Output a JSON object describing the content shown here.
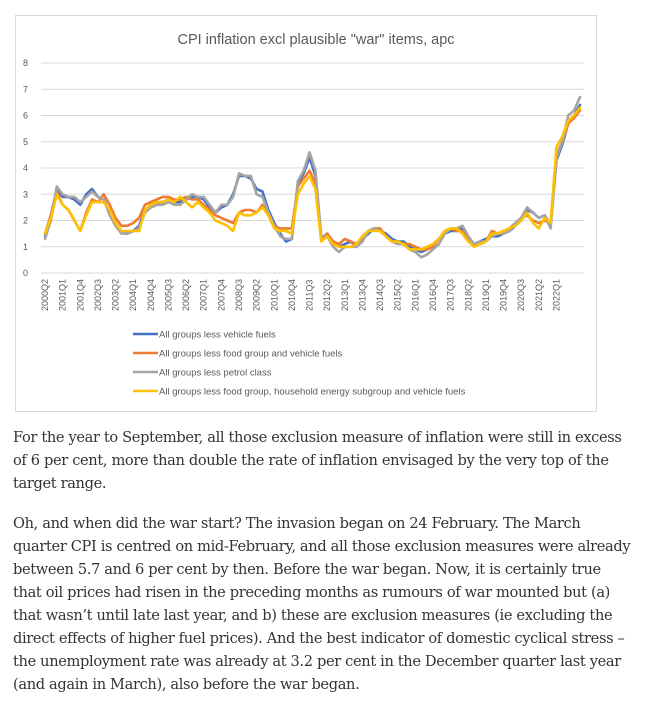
{
  "chart_data": {
    "type": "line",
    "title": "CPI inflation excl plausible \"war\" items, apc",
    "xlabel": "",
    "ylabel": "",
    "ylim": [
      0,
      8
    ],
    "yticks": [
      0,
      1,
      2,
      3,
      4,
      5,
      6,
      7,
      8
    ],
    "grid": true,
    "legend_position": "bottom",
    "x_tick_labels": [
      "2000Q2",
      "2001Q1",
      "2001Q4",
      "2002Q3",
      "2003Q2",
      "2004Q1",
      "2004Q4",
      "2005Q3",
      "2006Q2",
      "2007Q1",
      "2007Q4",
      "2008Q3",
      "2009Q2",
      "2010Q1",
      "2010Q4",
      "2011Q3",
      "2012Q2",
      "2013Q1",
      "2013Q4",
      "2014Q3",
      "2015Q2",
      "2016Q1",
      "2016Q4",
      "2017Q3",
      "2018Q2",
      "2019Q1",
      "2019Q4",
      "2020Q3",
      "2021Q2",
      "2022Q1"
    ],
    "x_start": "2000Q2",
    "x_end": "2022Q3",
    "tick_every": 3,
    "series": [
      {
        "name": "All groups less vehicle fuels",
        "color": "#4472C4",
        "values": [
          1.4,
          2.2,
          3.2,
          2.9,
          2.9,
          2.8,
          2.6,
          3.0,
          3.2,
          2.9,
          2.8,
          2.3,
          1.9,
          1.6,
          1.5,
          1.6,
          1.8,
          2.4,
          2.5,
          2.6,
          2.7,
          2.8,
          2.7,
          2.7,
          2.8,
          2.9,
          2.9,
          2.8,
          2.5,
          2.3,
          2.5,
          2.6,
          3.0,
          3.7,
          3.7,
          3.6,
          3.2,
          3.1,
          2.4,
          1.9,
          1.5,
          1.2,
          1.3,
          3.4,
          3.8,
          4.4,
          3.7,
          1.3,
          1.5,
          1.2,
          1.0,
          1.1,
          1.2,
          1.0,
          1.3,
          1.5,
          1.7,
          1.6,
          1.5,
          1.3,
          1.2,
          1.2,
          1.0,
          0.9,
          0.8,
          0.9,
          1.1,
          1.3,
          1.5,
          1.6,
          1.6,
          1.7,
          1.3,
          1.1,
          1.2,
          1.3,
          1.4,
          1.4,
          1.5,
          1.6,
          1.8,
          2.0,
          2.4,
          2.3,
          2.1,
          2.2,
          1.8,
          4.3,
          4.9,
          5.7,
          6.0,
          6.4
        ]
      },
      {
        "name": "All groups less food group and vehicle fuels",
        "color": "#ED7D31",
        "values": [
          1.5,
          2.2,
          3.1,
          2.6,
          2.4,
          2.0,
          1.6,
          2.3,
          2.8,
          2.7,
          3.0,
          2.6,
          2.1,
          1.8,
          1.8,
          1.9,
          2.1,
          2.6,
          2.7,
          2.8,
          2.9,
          2.9,
          2.8,
          2.8,
          2.9,
          2.8,
          2.8,
          2.6,
          2.4,
          2.2,
          2.1,
          2.0,
          1.9,
          2.3,
          2.4,
          2.4,
          2.3,
          2.6,
          2.2,
          1.8,
          1.7,
          1.7,
          1.7,
          3.3,
          3.6,
          3.9,
          3.4,
          1.3,
          1.5,
          1.2,
          1.1,
          1.3,
          1.2,
          1.1,
          1.4,
          1.6,
          1.7,
          1.7,
          1.4,
          1.2,
          1.2,
          1.1,
          1.1,
          1.0,
          0.9,
          0.9,
          1.0,
          1.3,
          1.6,
          1.7,
          1.6,
          1.6,
          1.3,
          1.1,
          1.1,
          1.2,
          1.6,
          1.5,
          1.6,
          1.7,
          1.9,
          2.1,
          2.2,
          2.0,
          1.9,
          2.0,
          1.9,
          4.5,
          5.0,
          5.7,
          5.9,
          6.2
        ]
      },
      {
        "name": "All groups less petrol class",
        "color": "#A5A5A5",
        "values": [
          1.3,
          2.0,
          3.3,
          3.0,
          2.9,
          2.9,
          2.7,
          2.9,
          3.1,
          2.9,
          2.8,
          2.2,
          1.8,
          1.5,
          1.5,
          1.6,
          1.7,
          2.3,
          2.5,
          2.6,
          2.6,
          2.7,
          2.6,
          2.6,
          2.8,
          3.0,
          2.9,
          2.9,
          2.6,
          2.3,
          2.6,
          2.6,
          2.9,
          3.8,
          3.7,
          3.7,
          3.0,
          2.9,
          2.3,
          1.8,
          1.4,
          1.3,
          1.3,
          3.5,
          3.9,
          4.6,
          3.9,
          1.4,
          1.4,
          1.0,
          0.8,
          1.0,
          1.0,
          1.0,
          1.2,
          1.6,
          1.7,
          1.6,
          1.4,
          1.2,
          1.1,
          1.1,
          0.9,
          0.8,
          0.6,
          0.7,
          0.9,
          1.1,
          1.5,
          1.7,
          1.7,
          1.8,
          1.4,
          1.1,
          1.2,
          1.2,
          1.4,
          1.5,
          1.5,
          1.6,
          1.9,
          2.1,
          2.5,
          2.3,
          2.1,
          2.2,
          1.7,
          4.4,
          5.0,
          6.0,
          6.2,
          6.7
        ]
      },
      {
        "name": "All groups less food group, household energy subgroup and vehicle fuels",
        "color": "#FFC000",
        "values": [
          1.5,
          2.1,
          3.0,
          2.6,
          2.4,
          2.0,
          1.6,
          2.2,
          2.7,
          2.7,
          2.7,
          2.4,
          1.9,
          1.6,
          1.6,
          1.6,
          1.6,
          2.4,
          2.6,
          2.7,
          2.7,
          2.8,
          2.7,
          2.9,
          2.7,
          2.5,
          2.7,
          2.5,
          2.3,
          2.0,
          1.9,
          1.8,
          1.6,
          2.3,
          2.2,
          2.2,
          2.3,
          2.5,
          2.2,
          1.7,
          1.6,
          1.6,
          1.5,
          3.0,
          3.4,
          3.7,
          3.2,
          1.2,
          1.4,
          1.1,
          1.0,
          1.0,
          1.0,
          1.1,
          1.4,
          1.6,
          1.6,
          1.6,
          1.4,
          1.2,
          1.2,
          1.1,
          0.9,
          0.9,
          0.9,
          1.0,
          1.1,
          1.3,
          1.6,
          1.7,
          1.7,
          1.5,
          1.2,
          1.0,
          1.1,
          1.2,
          1.5,
          1.5,
          1.6,
          1.7,
          1.8,
          2.0,
          2.3,
          1.9,
          1.7,
          2.1,
          1.9,
          4.8,
          5.2,
          5.8,
          6.0,
          6.3
        ]
      }
    ]
  },
  "article": {
    "paragraphs": [
      "For the year to September, all those exclusion measure of inflation were still in excess of 6 per cent, more than double the rate of inflation envisaged by the very top of the target range.",
      "Oh, and when did the war start? The invasion began on 24 February. The March quarter CPI is centred on mid-February, and all those exclusion measures were already between 5.7 and 6 per cent by then. Before the war began. Now, it is certainly true that oil prices had risen in the preceding months as rumours of war mounted but (a) that wasn’t until late last year, and b) these are exclusion measures (ie excluding the direct effects of higher fuel prices). And the best indicator of domestic cyclical stress – the unemployment rate was already at 3.2 per cent in the December quarter last year (and again in March), also before the war began."
    ]
  }
}
